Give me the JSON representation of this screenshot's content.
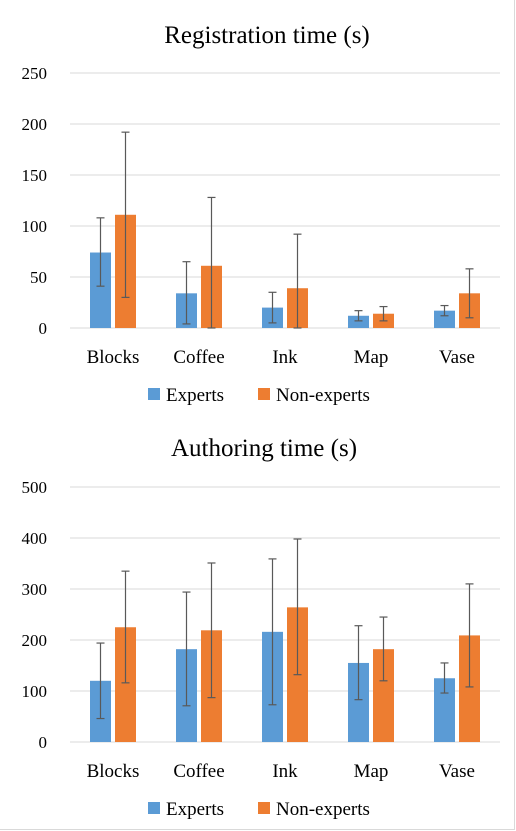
{
  "colors": {
    "experts": "#5b9bd5",
    "non_experts": "#ed7d31",
    "grid": "#d9d9d9",
    "error_bar": "#595959"
  },
  "chart_data": [
    {
      "type": "bar",
      "title": "Registration time (s)",
      "xlabel": "",
      "ylabel": "",
      "categories": [
        "Blocks",
        "Coffee",
        "Ink",
        "Map",
        "Vase"
      ],
      "ylim": [
        0,
        250
      ],
      "yticks": [
        0,
        50,
        100,
        150,
        200,
        250
      ],
      "grid": true,
      "legend_position": "bottom",
      "series": [
        {
          "name": "Experts",
          "values": [
            74,
            34,
            20,
            12,
            17
          ],
          "error_low": [
            41,
            4,
            5,
            7,
            12
          ],
          "error_high": [
            108,
            65,
            35,
            17,
            22
          ]
        },
        {
          "name": "Non-experts",
          "values": [
            111,
            61,
            39,
            14,
            34
          ],
          "error_low": [
            30,
            0,
            0,
            7,
            10
          ],
          "error_high": [
            192,
            128,
            92,
            21,
            58
          ]
        }
      ]
    },
    {
      "type": "bar",
      "title": "Authoring time (s)",
      "xlabel": "",
      "ylabel": "",
      "categories": [
        "Blocks",
        "Coffee",
        "Ink",
        "Map",
        "Vase"
      ],
      "ylim": [
        0,
        500
      ],
      "yticks": [
        0,
        100,
        200,
        300,
        400,
        500
      ],
      "grid": true,
      "legend_position": "bottom",
      "series": [
        {
          "name": "Experts",
          "values": [
            120,
            182,
            216,
            155,
            125
          ],
          "error_low": [
            46,
            71,
            73,
            83,
            96
          ],
          "error_high": [
            194,
            294,
            359,
            228,
            155
          ]
        },
        {
          "name": "Non-experts",
          "values": [
            225,
            219,
            264,
            182,
            209
          ],
          "error_low": [
            116,
            87,
            132,
            120,
            108
          ],
          "error_high": [
            335,
            351,
            398,
            245,
            310
          ]
        }
      ]
    }
  ]
}
